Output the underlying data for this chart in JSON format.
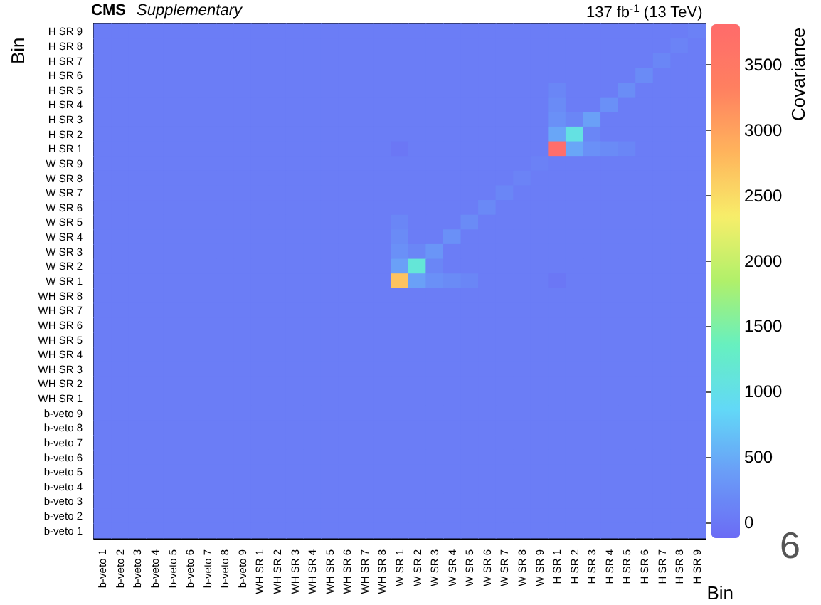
{
  "chart_data": {
    "type": "heatmap",
    "title": "CMS",
    "subtitle": "Supplementary",
    "xlabel": "Bin",
    "ylabel": "Bin",
    "clabel": "Covariance",
    "annotations": [
      "137 fb$^{-1}$ (13 TeV)",
      "6"
    ],
    "categories": [
      "b-veto 1",
      "b-veto 2",
      "b-veto 3",
      "b-veto 4",
      "b-veto 5",
      "b-veto 6",
      "b-veto 7",
      "b-veto 8",
      "b-veto 9",
      "WH SR 1",
      "WH SR 2",
      "WH SR 3",
      "WH SR 4",
      "WH SR 5",
      "WH SR 6",
      "WH SR 7",
      "WH SR 8",
      "W SR 1",
      "W SR 2",
      "W SR 3",
      "W SR 4",
      "W SR 5",
      "W SR 6",
      "W SR 7",
      "W SR 8",
      "W SR 9",
      "H SR 1",
      "H SR 2",
      "H SR 3",
      "H SR 4",
      "H SR 5",
      "H SR 6",
      "H SR 7",
      "H SR 8",
      "H SR 9"
    ],
    "y_categories": [
      "H SR 9",
      "H SR 8",
      "H SR 7",
      "H SR 6",
      "H SR 5",
      "H SR 4",
      "H SR 3",
      "H SR 2",
      "H SR 1",
      "W SR 9",
      "W SR 8",
      "W SR 7",
      "W SR 6",
      "W SR 5",
      "W SR 4",
      "W SR 3",
      "W SR 2",
      "W SR 1",
      "WH SR 8",
      "WH SR 7",
      "WH SR 6",
      "WH SR 5",
      "WH SR 4",
      "WH SR 3",
      "WH SR 2",
      "WH SR 1",
      "b-veto 9",
      "b-veto 8",
      "b-veto 7",
      "b-veto 6",
      "b-veto 5",
      "b-veto 4",
      "b-veto 3",
      "b-veto 2",
      "b-veto 1"
    ],
    "cells": [
      [
        60,
        60,
        60,
        60,
        60,
        60,
        60,
        60,
        60,
        60,
        60,
        60,
        60,
        60,
        60,
        60,
        60,
        60,
        60,
        60,
        60,
        60,
        60,
        60,
        60,
        60,
        60,
        60,
        60,
        60,
        60,
        60,
        60,
        60,
        100
      ],
      [
        60,
        60,
        60,
        60,
        60,
        60,
        60,
        60,
        60,
        60,
        60,
        60,
        60,
        60,
        60,
        60,
        60,
        60,
        60,
        60,
        60,
        60,
        60,
        60,
        60,
        60,
        60,
        60,
        60,
        60,
        60,
        60,
        60,
        120,
        60
      ],
      [
        60,
        60,
        60,
        60,
        60,
        60,
        60,
        60,
        60,
        60,
        60,
        60,
        60,
        60,
        60,
        60,
        60,
        60,
        60,
        60,
        60,
        60,
        60,
        60,
        60,
        60,
        60,
        60,
        60,
        60,
        60,
        60,
        150,
        60,
        60
      ],
      [
        60,
        60,
        60,
        60,
        60,
        60,
        60,
        60,
        60,
        60,
        60,
        60,
        60,
        60,
        60,
        60,
        60,
        60,
        60,
        60,
        60,
        60,
        60,
        60,
        60,
        60,
        60,
        60,
        60,
        60,
        60,
        200,
        60,
        60,
        60
      ],
      [
        60,
        60,
        60,
        60,
        60,
        60,
        60,
        60,
        60,
        60,
        60,
        60,
        60,
        60,
        60,
        60,
        60,
        60,
        60,
        60,
        60,
        60,
        60,
        60,
        60,
        60,
        150,
        60,
        60,
        60,
        220,
        60,
        60,
        60,
        60
      ],
      [
        60,
        60,
        60,
        60,
        60,
        60,
        60,
        60,
        60,
        60,
        60,
        60,
        60,
        60,
        60,
        60,
        60,
        60,
        60,
        60,
        60,
        60,
        60,
        60,
        60,
        60,
        200,
        60,
        60,
        250,
        60,
        60,
        60,
        60,
        60
      ],
      [
        60,
        60,
        60,
        60,
        60,
        60,
        60,
        60,
        60,
        60,
        60,
        60,
        60,
        60,
        60,
        60,
        60,
        60,
        60,
        60,
        60,
        60,
        60,
        60,
        60,
        60,
        250,
        150,
        400,
        60,
        60,
        60,
        60,
        60,
        60
      ],
      [
        60,
        60,
        60,
        60,
        60,
        60,
        60,
        60,
        60,
        60,
        60,
        60,
        60,
        60,
        60,
        60,
        60,
        60,
        60,
        60,
        60,
        60,
        60,
        60,
        60,
        60,
        450,
        1050,
        150,
        60,
        60,
        60,
        60,
        60,
        60
      ],
      [
        60,
        60,
        60,
        60,
        60,
        60,
        60,
        60,
        60,
        60,
        60,
        60,
        60,
        60,
        60,
        60,
        60,
        0,
        60,
        60,
        60,
        60,
        60,
        60,
        60,
        60,
        3750,
        450,
        250,
        200,
        150,
        60,
        60,
        60,
        60
      ],
      [
        60,
        60,
        60,
        60,
        60,
        60,
        60,
        60,
        60,
        60,
        60,
        60,
        60,
        60,
        60,
        60,
        60,
        60,
        60,
        60,
        60,
        60,
        60,
        60,
        60,
        100,
        60,
        60,
        60,
        60,
        60,
        60,
        60,
        60,
        60
      ],
      [
        60,
        60,
        60,
        60,
        60,
        60,
        60,
        60,
        60,
        60,
        60,
        60,
        60,
        60,
        60,
        60,
        60,
        60,
        60,
        60,
        60,
        60,
        60,
        60,
        120,
        60,
        60,
        60,
        60,
        60,
        60,
        60,
        60,
        60,
        60
      ],
      [
        60,
        60,
        60,
        60,
        60,
        60,
        60,
        60,
        60,
        60,
        60,
        60,
        60,
        60,
        60,
        60,
        60,
        60,
        60,
        60,
        60,
        60,
        60,
        150,
        60,
        60,
        60,
        60,
        60,
        60,
        60,
        60,
        60,
        60,
        60
      ],
      [
        60,
        60,
        60,
        60,
        60,
        60,
        60,
        60,
        60,
        60,
        60,
        60,
        60,
        60,
        60,
        60,
        60,
        60,
        60,
        60,
        60,
        60,
        180,
        60,
        60,
        60,
        60,
        60,
        60,
        60,
        60,
        60,
        60,
        60,
        60
      ],
      [
        60,
        60,
        60,
        60,
        60,
        60,
        60,
        60,
        60,
        60,
        60,
        60,
        60,
        60,
        60,
        60,
        60,
        150,
        60,
        60,
        60,
        200,
        60,
        60,
        60,
        60,
        60,
        60,
        60,
        60,
        60,
        60,
        60,
        60,
        60
      ],
      [
        60,
        60,
        60,
        60,
        60,
        60,
        60,
        60,
        60,
        60,
        60,
        60,
        60,
        60,
        60,
        60,
        60,
        200,
        60,
        60,
        250,
        60,
        60,
        60,
        60,
        60,
        60,
        60,
        60,
        60,
        60,
        60,
        60,
        60,
        60
      ],
      [
        60,
        60,
        60,
        60,
        60,
        60,
        60,
        60,
        60,
        60,
        60,
        60,
        60,
        60,
        60,
        60,
        60,
        250,
        150,
        300,
        60,
        60,
        60,
        60,
        60,
        60,
        60,
        60,
        60,
        60,
        60,
        60,
        60,
        60,
        60
      ],
      [
        60,
        60,
        60,
        60,
        60,
        60,
        60,
        60,
        60,
        60,
        60,
        60,
        60,
        60,
        60,
        60,
        60,
        400,
        1150,
        150,
        60,
        60,
        60,
        60,
        60,
        60,
        60,
        60,
        60,
        60,
        60,
        60,
        60,
        60,
        60
      ],
      [
        60,
        60,
        60,
        60,
        60,
        60,
        60,
        60,
        60,
        60,
        60,
        60,
        60,
        60,
        60,
        60,
        60,
        2700,
        400,
        250,
        200,
        150,
        60,
        60,
        60,
        60,
        0,
        60,
        60,
        60,
        60,
        60,
        60,
        60,
        60
      ],
      [
        60,
        60,
        60,
        60,
        60,
        60,
        60,
        60,
        60,
        60,
        60,
        60,
        60,
        60,
        60,
        60,
        60,
        60,
        60,
        60,
        60,
        60,
        60,
        60,
        60,
        60,
        60,
        60,
        60,
        60,
        60,
        60,
        60,
        60,
        60
      ],
      [
        60,
        60,
        60,
        60,
        60,
        60,
        60,
        60,
        60,
        60,
        60,
        60,
        60,
        60,
        60,
        60,
        60,
        60,
        60,
        60,
        60,
        60,
        60,
        60,
        60,
        60,
        60,
        60,
        60,
        60,
        60,
        60,
        60,
        60,
        60
      ],
      [
        60,
        60,
        60,
        60,
        60,
        60,
        60,
        60,
        60,
        60,
        60,
        60,
        60,
        60,
        60,
        60,
        60,
        60,
        60,
        60,
        60,
        60,
        60,
        60,
        60,
        60,
        60,
        60,
        60,
        60,
        60,
        60,
        60,
        60,
        60
      ],
      [
        60,
        60,
        60,
        60,
        60,
        60,
        60,
        60,
        60,
        60,
        60,
        60,
        60,
        60,
        60,
        60,
        60,
        60,
        60,
        60,
        60,
        60,
        60,
        60,
        60,
        60,
        60,
        60,
        60,
        60,
        60,
        60,
        60,
        60,
        60
      ],
      [
        60,
        60,
        60,
        60,
        60,
        60,
        60,
        60,
        60,
        60,
        60,
        60,
        60,
        60,
        60,
        60,
        60,
        60,
        60,
        60,
        60,
        60,
        60,
        60,
        60,
        60,
        60,
        60,
        60,
        60,
        60,
        60,
        60,
        60,
        60
      ],
      [
        60,
        60,
        60,
        60,
        60,
        60,
        60,
        60,
        60,
        60,
        60,
        60,
        60,
        60,
        60,
        60,
        60,
        60,
        60,
        60,
        60,
        60,
        60,
        60,
        60,
        60,
        60,
        60,
        60,
        60,
        60,
        60,
        60,
        60,
        60
      ],
      [
        60,
        60,
        60,
        60,
        60,
        60,
        60,
        60,
        60,
        60,
        60,
        60,
        60,
        60,
        60,
        60,
        60,
        60,
        60,
        60,
        60,
        60,
        60,
        60,
        60,
        60,
        60,
        60,
        60,
        60,
        60,
        60,
        60,
        60,
        60
      ],
      [
        60,
        60,
        60,
        60,
        60,
        60,
        60,
        60,
        60,
        60,
        60,
        60,
        60,
        60,
        60,
        60,
        60,
        60,
        60,
        60,
        60,
        60,
        60,
        60,
        60,
        60,
        60,
        60,
        60,
        60,
        60,
        60,
        60,
        60,
        60
      ],
      [
        60,
        60,
        60,
        60,
        60,
        60,
        60,
        60,
        60,
        60,
        60,
        60,
        60,
        60,
        60,
        60,
        60,
        60,
        60,
        60,
        60,
        60,
        60,
        60,
        60,
        60,
        60,
        60,
        60,
        60,
        60,
        60,
        60,
        60,
        60
      ],
      [
        60,
        60,
        60,
        60,
        60,
        60,
        60,
        60,
        60,
        60,
        60,
        60,
        60,
        60,
        60,
        60,
        60,
        60,
        60,
        60,
        60,
        60,
        60,
        60,
        60,
        60,
        60,
        60,
        60,
        60,
        60,
        60,
        60,
        60,
        60
      ],
      [
        60,
        60,
        60,
        60,
        60,
        60,
        60,
        60,
        60,
        60,
        60,
        60,
        60,
        60,
        60,
        60,
        60,
        60,
        60,
        60,
        60,
        60,
        60,
        60,
        60,
        60,
        60,
        60,
        60,
        60,
        60,
        60,
        60,
        60,
        60
      ],
      [
        60,
        60,
        60,
        60,
        60,
        60,
        60,
        60,
        60,
        60,
        60,
        60,
        60,
        60,
        60,
        60,
        60,
        60,
        60,
        60,
        60,
        60,
        60,
        60,
        60,
        60,
        60,
        60,
        60,
        60,
        60,
        60,
        60,
        60,
        60
      ],
      [
        60,
        60,
        60,
        60,
        60,
        60,
        60,
        60,
        60,
        60,
        60,
        60,
        60,
        60,
        60,
        60,
        60,
        60,
        60,
        60,
        60,
        60,
        60,
        60,
        60,
        60,
        60,
        60,
        60,
        60,
        60,
        60,
        60,
        60,
        60
      ],
      [
        60,
        60,
        60,
        60,
        60,
        60,
        60,
        60,
        60,
        60,
        60,
        60,
        60,
        60,
        60,
        60,
        60,
        60,
        60,
        60,
        60,
        60,
        60,
        60,
        60,
        60,
        60,
        60,
        60,
        60,
        60,
        60,
        60,
        60,
        60
      ],
      [
        60,
        60,
        60,
        60,
        60,
        60,
        60,
        60,
        60,
        60,
        60,
        60,
        60,
        60,
        60,
        60,
        60,
        60,
        60,
        60,
        60,
        60,
        60,
        60,
        60,
        60,
        60,
        60,
        60,
        60,
        60,
        60,
        60,
        60,
        60
      ],
      [
        60,
        60,
        60,
        60,
        60,
        60,
        60,
        60,
        60,
        60,
        60,
        60,
        60,
        60,
        60,
        60,
        60,
        60,
        60,
        60,
        60,
        60,
        60,
        60,
        60,
        60,
        60,
        60,
        60,
        60,
        60,
        60,
        60,
        60,
        60
      ],
      [
        60,
        60,
        60,
        60,
        60,
        60,
        60,
        60,
        60,
        60,
        60,
        60,
        60,
        60,
        60,
        60,
        60,
        60,
        60,
        60,
        60,
        60,
        60,
        60,
        60,
        60,
        60,
        60,
        60,
        60,
        60,
        60,
        60,
        60,
        60
      ]
    ],
    "clim": [
      -120,
      3810
    ],
    "cticks": [
      0,
      500,
      1000,
      1500,
      2000,
      2500,
      3000,
      3500
    ]
  }
}
